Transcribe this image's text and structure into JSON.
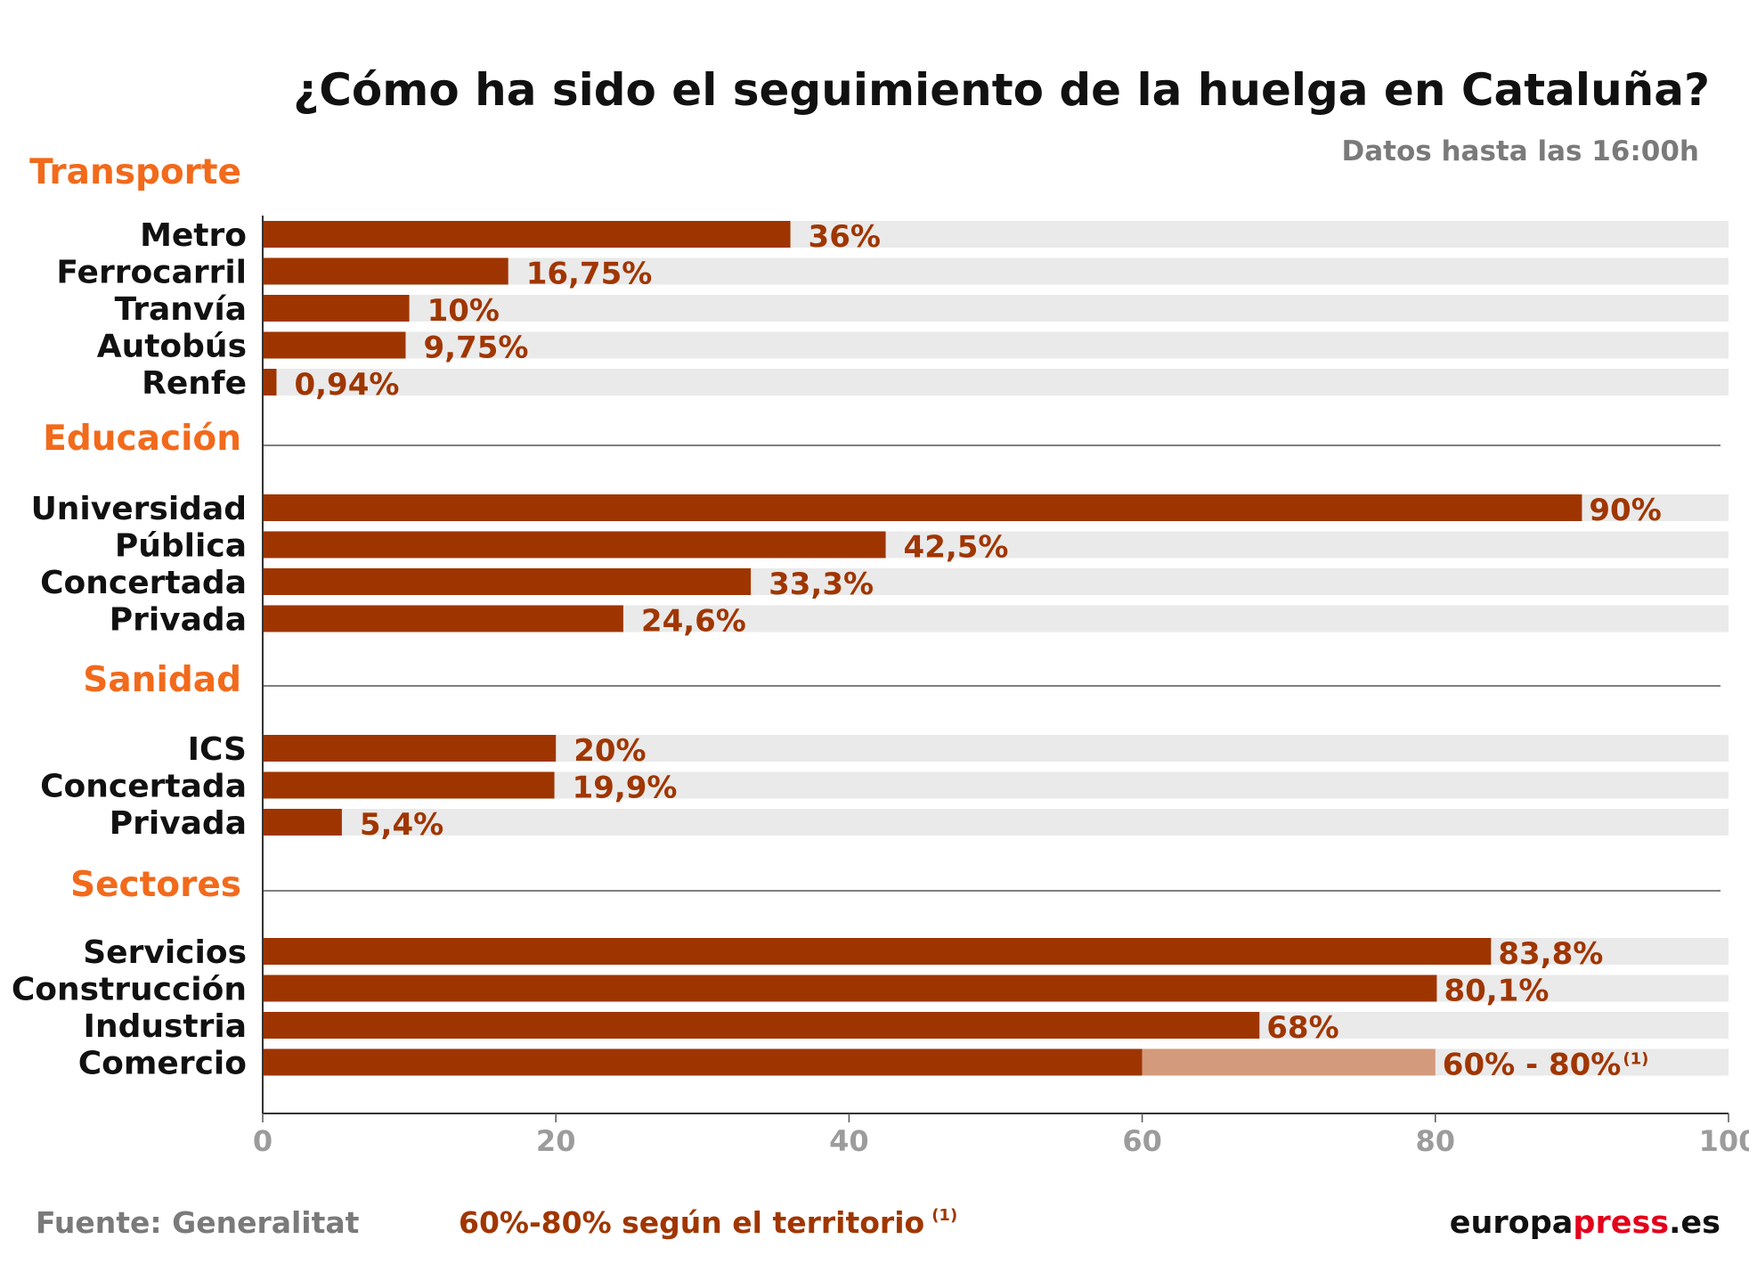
{
  "chart_data": {
    "type": "bar",
    "orientation": "horizontal",
    "title": "¿Cómo ha sido el seguimiento de la huelga en Cataluña?",
    "subtitle": "Datos hasta las 16:00h",
    "xlim": [
      0,
      100
    ],
    "xticks": [
      0,
      20,
      40,
      60,
      80,
      100
    ],
    "colors": {
      "bar": "#9e3500",
      "range": "#d49a7c",
      "track": "#eaeaea",
      "group": "#f26a1b",
      "value": "#a03600"
    },
    "groups": [
      {
        "name": "Transporte",
        "items": [
          {
            "label": "Metro",
            "value": 36,
            "value_label": "36%"
          },
          {
            "label": "Ferrocarril",
            "value": 16.75,
            "value_label": "16,75%"
          },
          {
            "label": "Tranvía",
            "value": 10,
            "value_label": "10%"
          },
          {
            "label": "Autobús",
            "value": 9.75,
            "value_label": "9,75%"
          },
          {
            "label": "Renfe",
            "value": 0.94,
            "value_label": "0,94%"
          }
        ]
      },
      {
        "name": "Educación",
        "items": [
          {
            "label": "Universidad",
            "value": 90,
            "value_label": "90%"
          },
          {
            "label": "Pública",
            "value": 42.5,
            "value_label": "42,5%"
          },
          {
            "label": "Concertada",
            "value": 33.3,
            "value_label": "33,3%"
          },
          {
            "label": "Privada",
            "value": 24.6,
            "value_label": "24,6%"
          }
        ]
      },
      {
        "name": "Sanidad",
        "items": [
          {
            "label": "ICS",
            "value": 20,
            "value_label": "20%"
          },
          {
            "label": "Concertada",
            "value": 19.9,
            "value_label": "19,9%"
          },
          {
            "label": "Privada",
            "value": 5.4,
            "value_label": "5,4%"
          }
        ]
      },
      {
        "name": "Sectores",
        "items": [
          {
            "label": "Servicios",
            "value": 83.8,
            "value_label": "83,8%"
          },
          {
            "label": "Construcción",
            "value": 80.1,
            "value_label": "80,1%"
          },
          {
            "label": "Industria",
            "value": 68,
            "value_label": "68%"
          },
          {
            "label": "Comercio",
            "value": 60,
            "range_max": 80,
            "value_label": "60% - 80%",
            "value_note": "(1)"
          }
        ]
      }
    ]
  },
  "footer": {
    "source": "Fuente: Generalitat",
    "note": "60%-80% según el territorio",
    "note_mark": "(1)",
    "brand_part1": "europa",
    "brand_part2": "press",
    "brand_part3": ".es"
  }
}
